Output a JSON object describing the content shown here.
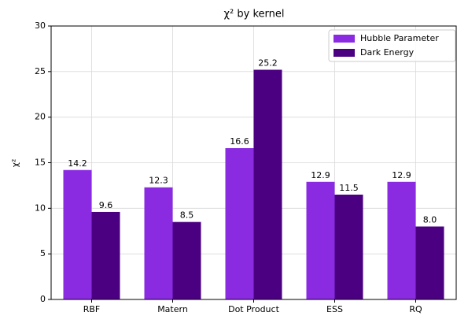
{
  "chart_data": {
    "type": "bar",
    "title": "χ² by kernel",
    "y_label": "χ²",
    "categories": [
      "RBF",
      "Matern",
      "Dot Product",
      "ESS",
      "RQ"
    ],
    "series": [
      {
        "name": "Hubble Parameter",
        "color": "#8a2be2",
        "values": [
          14.2,
          12.3,
          16.6,
          12.9,
          12.9
        ]
      },
      {
        "name": "Dark Energy",
        "color": "#4b0082",
        "values": [
          9.6,
          8.5,
          25.2,
          11.5,
          8.0
        ],
        "value_labels": [
          "9.6",
          "8.5",
          "25.2",
          "11.5",
          "8.0"
        ]
      }
    ],
    "ylim": [
      0,
      30
    ],
    "yticks": [
      0,
      5,
      10,
      15,
      20,
      25,
      30
    ],
    "grid": true,
    "legend": "upper right"
  }
}
